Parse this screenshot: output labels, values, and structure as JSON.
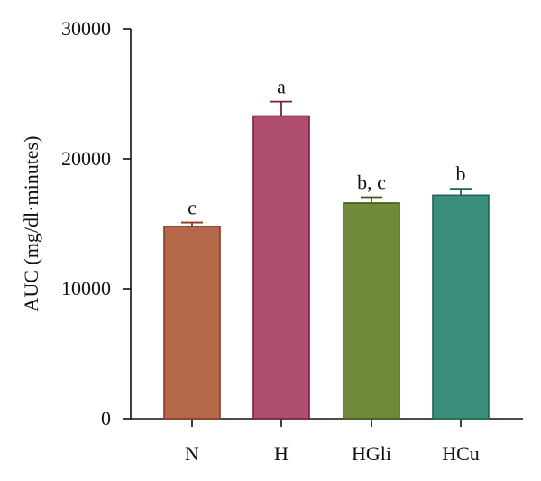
{
  "chart_data": {
    "type": "bar",
    "categories": [
      "N",
      "H",
      "HGli",
      "HCu"
    ],
    "values": [
      14800,
      23300,
      16600,
      17200
    ],
    "errors": [
      300,
      1100,
      450,
      500
    ],
    "significance": [
      "c",
      "a",
      "b, c",
      "b"
    ],
    "ylabel": "AUC (mg/dl·minutes)",
    "xlabel": "",
    "ylim": [
      0,
      30000
    ],
    "yticks": [
      0,
      10000,
      20000,
      30000
    ],
    "ytick_labels": [
      "0",
      "10000",
      "20000",
      "30000"
    ],
    "grid": false,
    "bar_colors": [
      "#b5694a",
      "#b04e72",
      "#6e8a3a",
      "#3a8f7c"
    ],
    "bar_edge_colors": [
      "#8a3a20",
      "#7a1f45",
      "#3f5a1a",
      "#1f6454"
    ]
  }
}
